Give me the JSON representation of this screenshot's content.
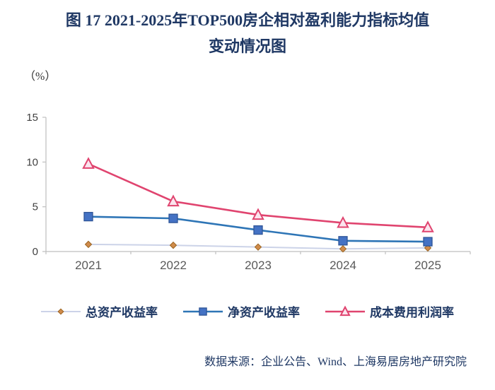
{
  "title": {
    "line1": "图 17 2021-2025年TOP500房企相对盈利能力指标均值",
    "line2": "变动情况图"
  },
  "chart_data": {
    "type": "line",
    "unit_label": "（%）",
    "x": [
      "2021",
      "2022",
      "2023",
      "2024",
      "2025"
    ],
    "series": [
      {
        "name": "总资产收益率",
        "marker": "diamond",
        "line_color": "#ccd3e8",
        "line_width": 2,
        "marker_fill": "#cf8b4b",
        "marker_color": "#9c6420",
        "values": [
          0.8,
          0.7,
          0.5,
          0.3,
          0.4
        ]
      },
      {
        "name": "净资产收益率",
        "marker": "square",
        "line_color": "#2e75b6",
        "line_width": 2.6,
        "marker_fill": "#4472c4",
        "marker_color": "#2f5597",
        "values": [
          3.9,
          3.7,
          2.4,
          1.2,
          1.1
        ]
      },
      {
        "name": "成本费用利润率",
        "marker": "triangle",
        "line_color": "#e0446f",
        "line_width": 2.6,
        "marker_fill": "#fbe4ee",
        "marker_color": "#e0446f",
        "values": [
          9.8,
          5.6,
          4.1,
          3.2,
          2.7
        ]
      }
    ],
    "ylim": [
      0,
      15
    ],
    "yticks": [
      0,
      5,
      10,
      15
    ],
    "grid": false,
    "legend_position": "bottom"
  },
  "source": "数据来源：企业公告、Wind、上海易居房地产研究院"
}
